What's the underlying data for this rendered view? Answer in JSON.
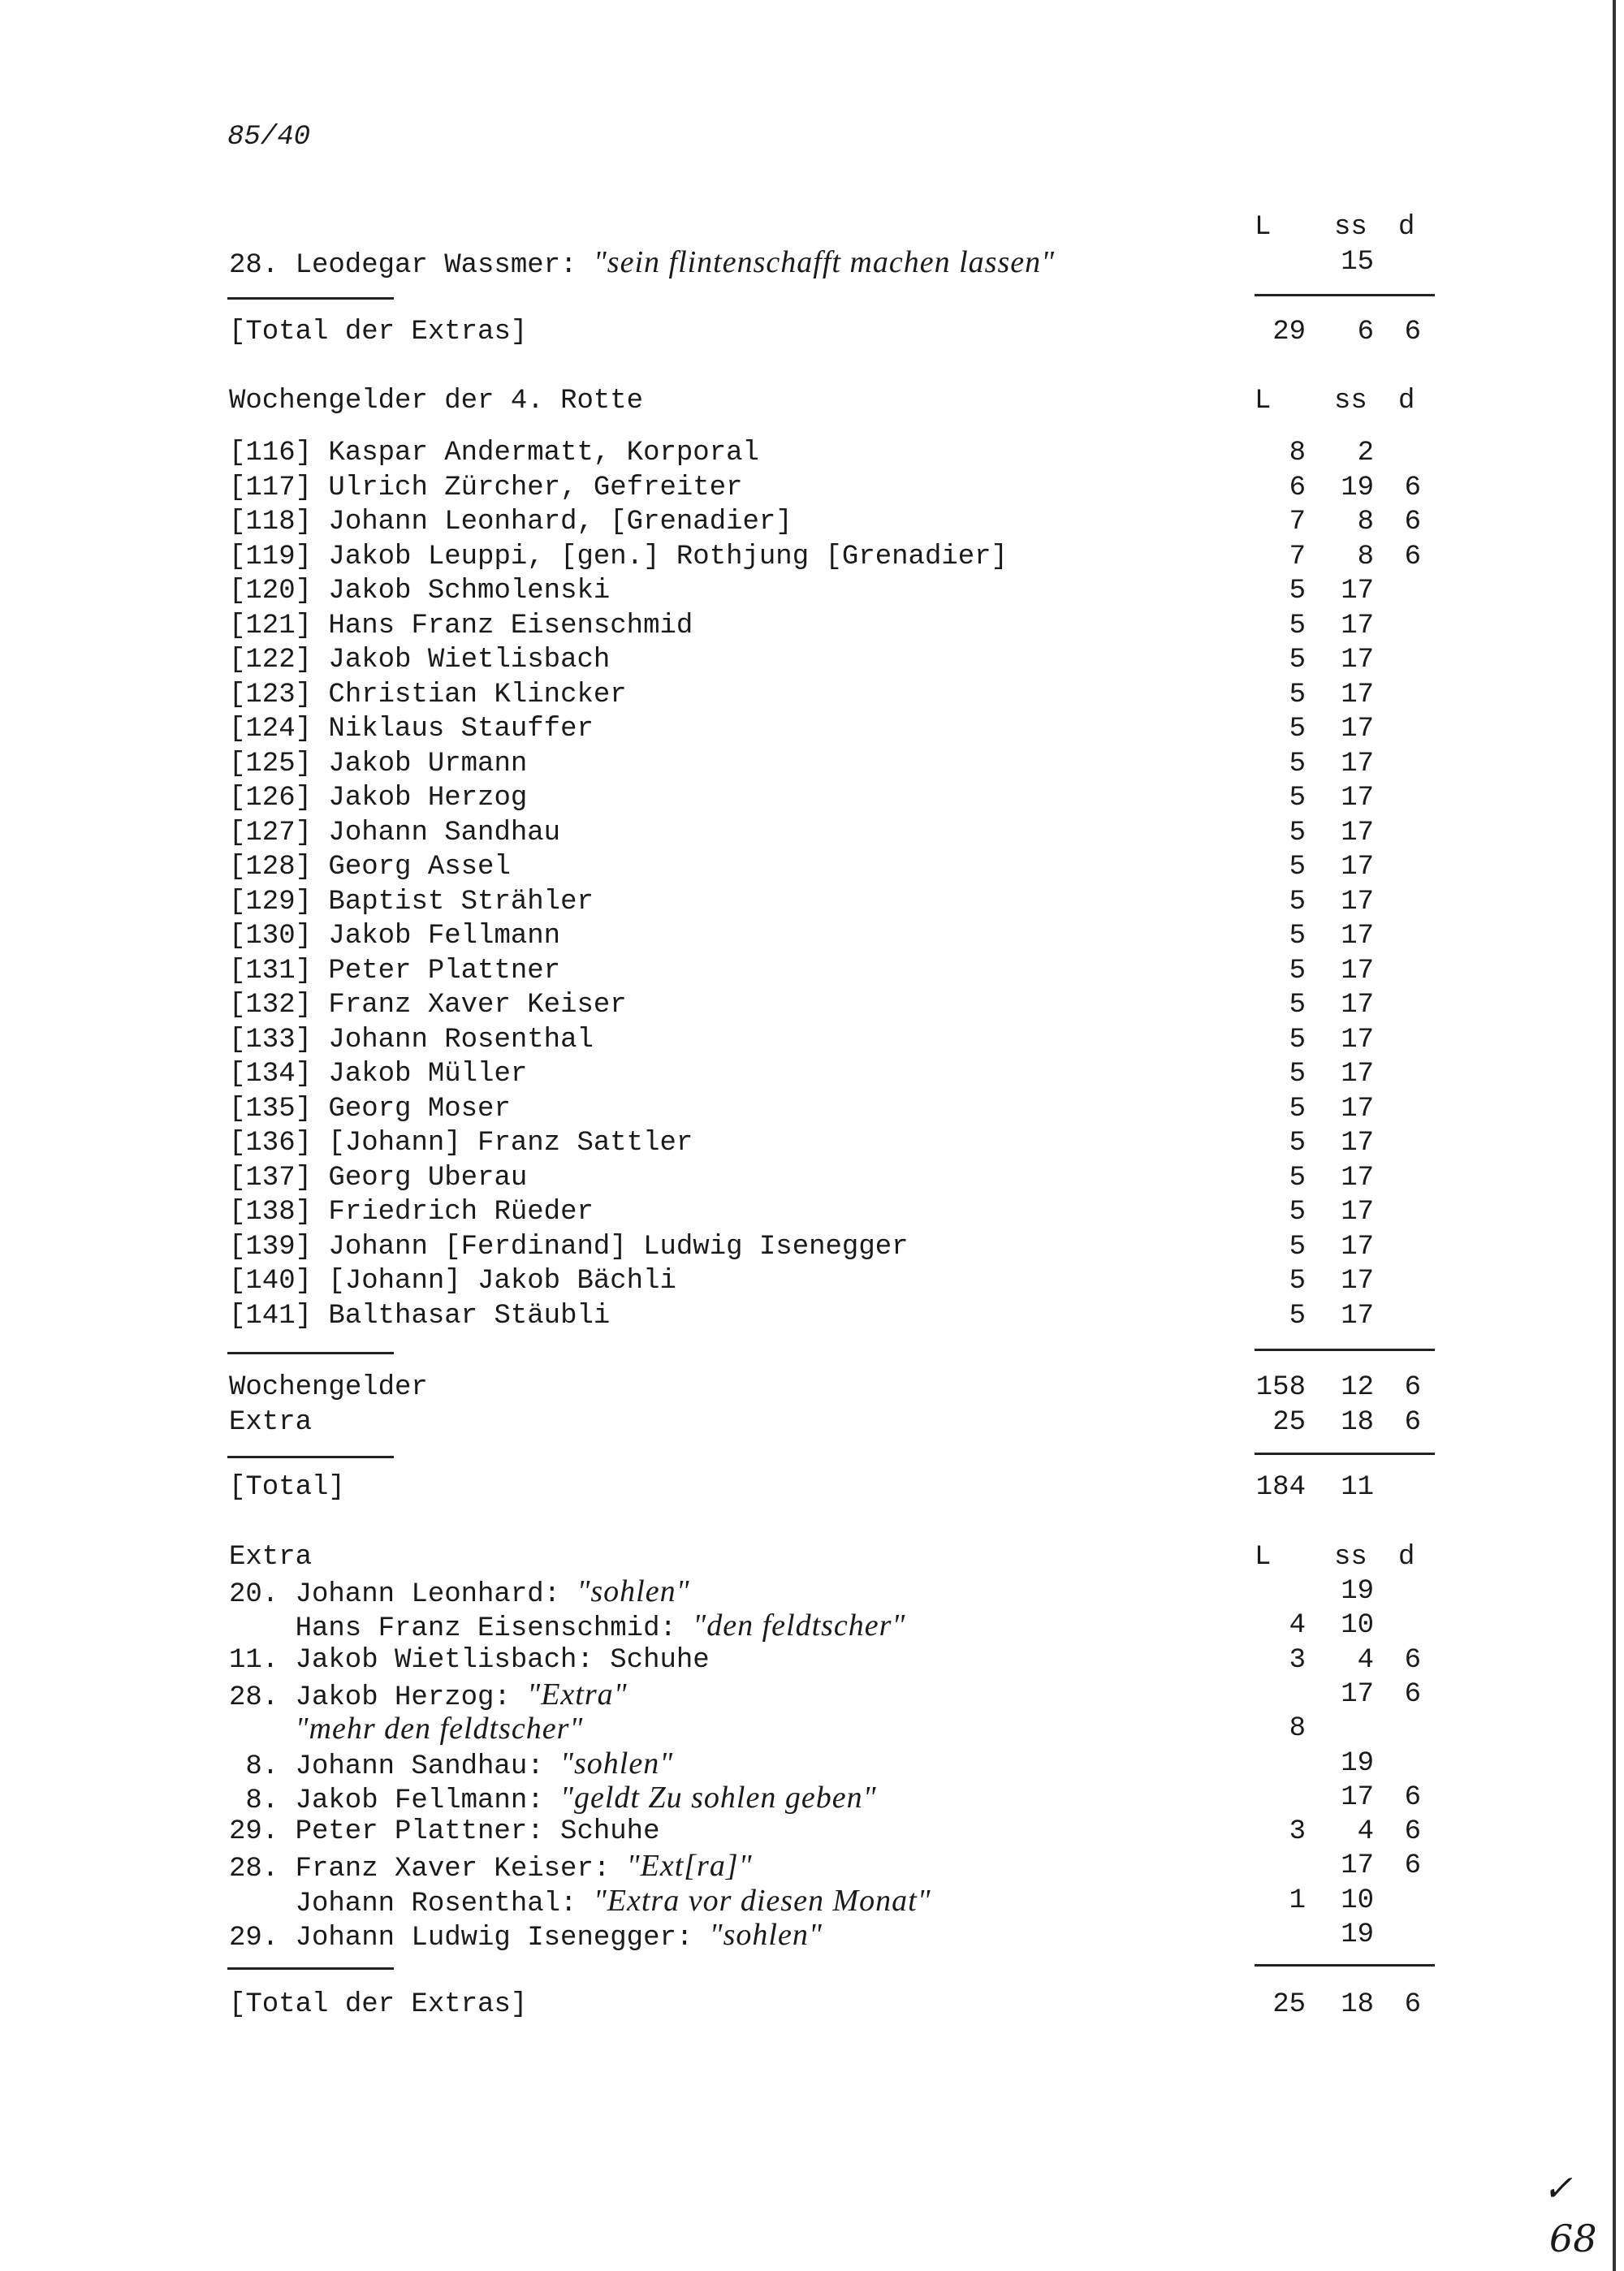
{
  "page_ref": "85/40",
  "columns": {
    "L": "L",
    "ss": "ss",
    "d": "d"
  },
  "top_extra": {
    "day": "28.",
    "name": "Leodegar Wassmer:",
    "quote": "\"sein flintenschafft machen lassen\"",
    "L": "",
    "ss": "15",
    "d": ""
  },
  "total_extras_1": {
    "label": "[Total der Extras]",
    "L": "29",
    "ss": "6",
    "d": "6"
  },
  "section_title": "Wochengelder der 4. Rotte",
  "persons": [
    {
      "no": "[116]",
      "name": "Kaspar Andermatt, Korporal",
      "L": "8",
      "ss": "2",
      "d": ""
    },
    {
      "no": "[117]",
      "name": "Ulrich Zürcher, Gefreiter",
      "L": "6",
      "ss": "19",
      "d": "6"
    },
    {
      "no": "[118]",
      "name": "Johann Leonhard, [Grenadier]",
      "L": "7",
      "ss": "8",
      "d": "6"
    },
    {
      "no": "[119]",
      "name": "Jakob Leuppi, [gen.] Rothjung [Grenadier]",
      "L": "7",
      "ss": "8",
      "d": "6"
    },
    {
      "no": "[120]",
      "name": "Jakob Schmolenski",
      "L": "5",
      "ss": "17",
      "d": ""
    },
    {
      "no": "[121]",
      "name": "Hans Franz Eisenschmid",
      "L": "5",
      "ss": "17",
      "d": ""
    },
    {
      "no": "[122]",
      "name": "Jakob Wietlisbach",
      "L": "5",
      "ss": "17",
      "d": ""
    },
    {
      "no": "[123]",
      "name": "Christian Klincker",
      "L": "5",
      "ss": "17",
      "d": ""
    },
    {
      "no": "[124]",
      "name": "Niklaus Stauffer",
      "L": "5",
      "ss": "17",
      "d": ""
    },
    {
      "no": "[125]",
      "name": "Jakob Urmann",
      "L": "5",
      "ss": "17",
      "d": ""
    },
    {
      "no": "[126]",
      "name": "Jakob Herzog",
      "L": "5",
      "ss": "17",
      "d": ""
    },
    {
      "no": "[127]",
      "name": "Johann Sandhau",
      "L": "5",
      "ss": "17",
      "d": ""
    },
    {
      "no": "[128]",
      "name": "Georg Assel",
      "L": "5",
      "ss": "17",
      "d": ""
    },
    {
      "no": "[129]",
      "name": "Baptist Strähler",
      "L": "5",
      "ss": "17",
      "d": ""
    },
    {
      "no": "[130]",
      "name": "Jakob Fellmann",
      "L": "5",
      "ss": "17",
      "d": ""
    },
    {
      "no": "[131]",
      "name": "Peter Plattner",
      "L": "5",
      "ss": "17",
      "d": ""
    },
    {
      "no": "[132]",
      "name": "Franz Xaver Keiser",
      "L": "5",
      "ss": "17",
      "d": ""
    },
    {
      "no": "[133]",
      "name": "Johann Rosenthal",
      "L": "5",
      "ss": "17",
      "d": ""
    },
    {
      "no": "[134]",
      "name": "Jakob Müller",
      "L": "5",
      "ss": "17",
      "d": ""
    },
    {
      "no": "[135]",
      "name": "Georg Moser",
      "L": "5",
      "ss": "17",
      "d": ""
    },
    {
      "no": "[136]",
      "name": "[Johann] Franz Sattler",
      "L": "5",
      "ss": "17",
      "d": ""
    },
    {
      "no": "[137]",
      "name": "Georg Uberau",
      "L": "5",
      "ss": "17",
      "d": ""
    },
    {
      "no": "[138]",
      "name": "Friedrich Rüeder",
      "L": "5",
      "ss": "17",
      "d": ""
    },
    {
      "no": "[139]",
      "name": "Johann [Ferdinand] Ludwig Isenegger",
      "L": "5",
      "ss": "17",
      "d": ""
    },
    {
      "no": "[140]",
      "name": "[Johann] Jakob Bächli",
      "L": "5",
      "ss": "17",
      "d": ""
    },
    {
      "no": "[141]",
      "name": "Balthasar Stäubli",
      "L": "5",
      "ss": "17",
      "d": ""
    }
  ],
  "summary": [
    {
      "label": "Wochengelder",
      "L": "158",
      "ss": "12",
      "d": "6"
    },
    {
      "label": "Extra",
      "L": "25",
      "ss": "18",
      "d": "6"
    }
  ],
  "grand_total": {
    "label": "[Total]",
    "L": "184",
    "ss": "11",
    "d": ""
  },
  "extra_title": "Extra",
  "extras": [
    {
      "day": "20.",
      "name": "Johann Leonhard:",
      "quote": "\"sohlen\"",
      "L": "",
      "ss": "19",
      "d": ""
    },
    {
      "day": "",
      "name": "Hans Franz Eisenschmid:",
      "quote": "\"den feldtscher\"",
      "L": "4",
      "ss": "10",
      "d": ""
    },
    {
      "day": "11.",
      "name": "Jakob Wietlisbach: Schuhe",
      "quote": "",
      "L": "3",
      "ss": "4",
      "d": "6"
    },
    {
      "day": "28.",
      "name": "Jakob Herzog:",
      "quote": "\"Extra\"",
      "L": "",
      "ss": "17",
      "d": "6"
    },
    {
      "day": "",
      "name": "",
      "quote": "\"mehr den feldtscher\"",
      "L": "8",
      "ss": "",
      "d": ""
    },
    {
      "day": "8.",
      "name": "Johann Sandhau:",
      "quote": "\"sohlen\"",
      "L": "",
      "ss": "19",
      "d": ""
    },
    {
      "day": "8.",
      "name": "Jakob Fellmann:",
      "quote": "\"geldt Zu sohlen geben\"",
      "L": "",
      "ss": "17",
      "d": "6"
    },
    {
      "day": "29.",
      "name": "Peter Plattner: Schuhe",
      "quote": "",
      "L": "3",
      "ss": "4",
      "d": "6"
    },
    {
      "day": "28.",
      "name": "Franz Xaver Keiser:",
      "quote": "\"Ext[ra]\"",
      "L": "",
      "ss": "17",
      "d": "6"
    },
    {
      "day": "",
      "name": "Johann Rosenthal:",
      "quote": "\"Extra vor diesen Monat\"",
      "L": "1",
      "ss": "10",
      "d": ""
    },
    {
      "day": "29.",
      "name": "Johann Ludwig Isenegger:",
      "quote": "\"sohlen\"",
      "L": "",
      "ss": "19",
      "d": ""
    }
  ],
  "total_extras_2": {
    "label": "[Total der Extras]",
    "L": "25",
    "ss": "18",
    "d": "6"
  },
  "handwritten_folio": "68",
  "handwritten_mark": "✓"
}
